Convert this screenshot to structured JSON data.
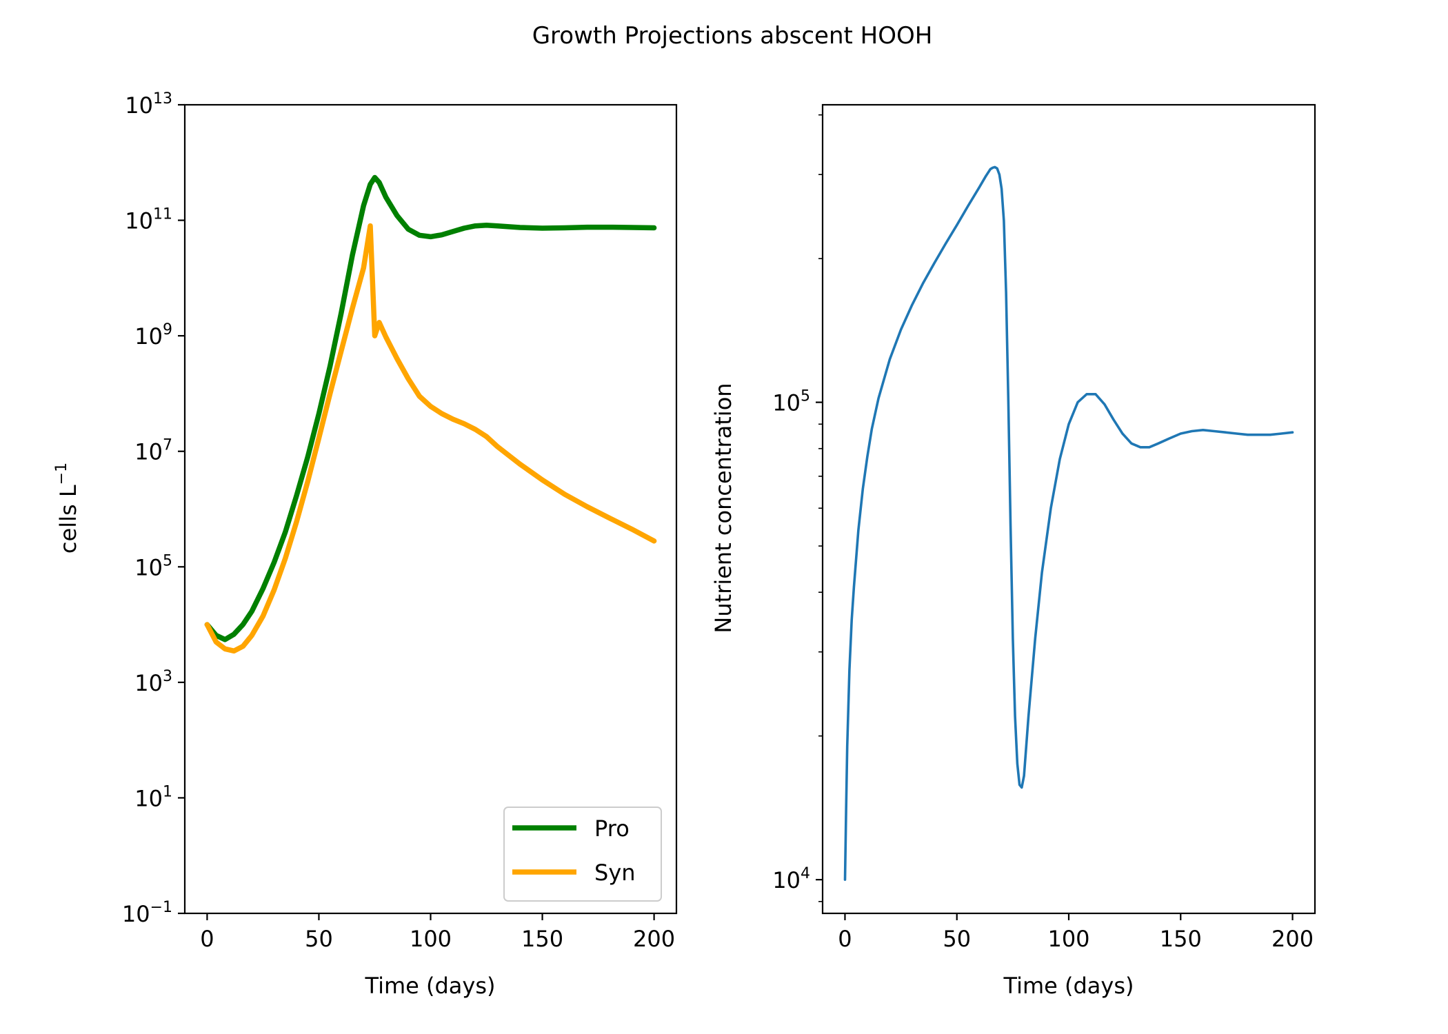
{
  "figure": {
    "title": "Growth Projections abscent HOOH"
  },
  "chart_data": [
    {
      "type": "line",
      "panel": "left",
      "xlabel": "Time (days)",
      "ylabel_main": "cells  L",
      "ylabel_sup": "−1",
      "yscale": "log",
      "xlim": [
        -10,
        210
      ],
      "ylim": [
        0.1,
        10000000000000.0
      ],
      "x_ticks": [
        0,
        50,
        100,
        150,
        200
      ],
      "y_ticks": [
        {
          "value": 0.1,
          "base": "10",
          "exp": "−1"
        },
        {
          "value": 10,
          "base": "10",
          "exp": "1"
        },
        {
          "value": 1000,
          "base": "10",
          "exp": "3"
        },
        {
          "value": 100000,
          "base": "10",
          "exp": "5"
        },
        {
          "value": 10000000,
          "base": "10",
          "exp": "7"
        },
        {
          "value": 1000000000,
          "base": "10",
          "exp": "9"
        },
        {
          "value": 100000000000,
          "base": "10",
          "exp": "11"
        },
        {
          "value": 10000000000000,
          "base": "10",
          "exp": "13"
        }
      ],
      "legend": {
        "position": "lower-right"
      },
      "grid": false,
      "series": [
        {
          "name": "Pro",
          "color": "#008000",
          "x": [
            0,
            4,
            8,
            12,
            16,
            20,
            25,
            30,
            35,
            40,
            45,
            50,
            55,
            60,
            65,
            70,
            73,
            75,
            77,
            80,
            85,
            90,
            95,
            100,
            105,
            110,
            115,
            120,
            125,
            130,
            140,
            150,
            160,
            170,
            180,
            190,
            200
          ],
          "y": [
            10000,
            6500,
            5500,
            6800,
            10000,
            17000,
            42000,
            120000,
            400000,
            1700000,
            8000000,
            45000000,
            300000000,
            2500000000,
            25000000000,
            180000000000,
            420000000000,
            550000000000,
            450000000000,
            250000000000,
            120000000000,
            70000000000,
            55000000000,
            52000000000,
            56000000000,
            64000000000,
            73000000000,
            80000000000,
            82000000000,
            80000000000,
            75000000000,
            73000000000,
            74000000000,
            76000000000,
            76000000000,
            75000000000,
            74000000000
          ]
        },
        {
          "name": "Syn",
          "color": "#ffa500",
          "x": [
            0,
            4,
            8,
            12,
            16,
            20,
            25,
            30,
            35,
            40,
            45,
            50,
            55,
            60,
            65,
            70,
            73,
            75,
            77,
            80,
            85,
            90,
            95,
            100,
            105,
            110,
            115,
            120,
            125,
            130,
            140,
            150,
            160,
            170,
            180,
            190,
            200
          ],
          "y": [
            10000,
            5000,
            3800,
            3500,
            4200,
            6500,
            14000,
            40000,
            140000,
            600000,
            3000000,
            17000000,
            100000000,
            550000000,
            3000000000,
            15000000000,
            80000000000,
            1000000000,
            1700000000,
            950000000,
            400000000,
            180000000,
            90000000,
            60000000,
            45000000,
            36000000,
            30000000,
            24000000,
            18000000,
            12000000,
            6000000,
            3200000,
            1800000,
            1100000,
            700000,
            450000,
            280000
          ]
        }
      ]
    },
    {
      "type": "line",
      "panel": "right",
      "xlabel": "Time (days)",
      "ylabel": "Nutrient concentration",
      "yscale": "log",
      "xlim": [
        -10,
        210
      ],
      "ylim": [
        8500,
        420000
      ],
      "x_ticks": [
        0,
        50,
        100,
        150,
        200
      ],
      "y_ticks": [
        {
          "value": 10000,
          "base": "10",
          "exp": "4"
        },
        {
          "value": 100000,
          "base": "10",
          "exp": "5"
        }
      ],
      "grid": false,
      "series": [
        {
          "name": "",
          "color": "#1f77b4",
          "x": [
            0,
            0.5,
            1,
            2,
            3,
            4,
            6,
            8,
            10,
            12,
            15,
            20,
            25,
            30,
            35,
            40,
            45,
            50,
            55,
            60,
            63,
            65,
            66,
            67,
            68,
            69,
            70,
            71,
            72,
            73,
            74,
            75,
            76,
            77,
            78,
            79,
            80,
            82,
            85,
            88,
            92,
            96,
            100,
            104,
            108,
            112,
            116,
            120,
            124,
            128,
            132,
            136,
            140,
            145,
            150,
            155,
            160,
            165,
            170,
            175,
            180,
            185,
            190,
            195,
            200
          ],
          "y": [
            10000,
            14000,
            19000,
            27500,
            35000,
            41000,
            54000,
            66000,
            77000,
            88000,
            102000,
            123000,
            142000,
            160000,
            178000,
            196000,
            215000,
            235000,
            258000,
            282000,
            298000,
            308000,
            310000,
            311000,
            309000,
            300000,
            280000,
            240000,
            170000,
            100000,
            55000,
            32000,
            22000,
            17500,
            15800,
            15600,
            16500,
            22000,
            32000,
            44000,
            60000,
            76000,
            90000,
            100000,
            104000,
            104000,
            99000,
            92000,
            86000,
            82000,
            80500,
            80500,
            82000,
            84000,
            86000,
            87000,
            87500,
            87000,
            86500,
            86000,
            85500,
            85500,
            85500,
            86000,
            86500
          ]
        }
      ]
    }
  ]
}
